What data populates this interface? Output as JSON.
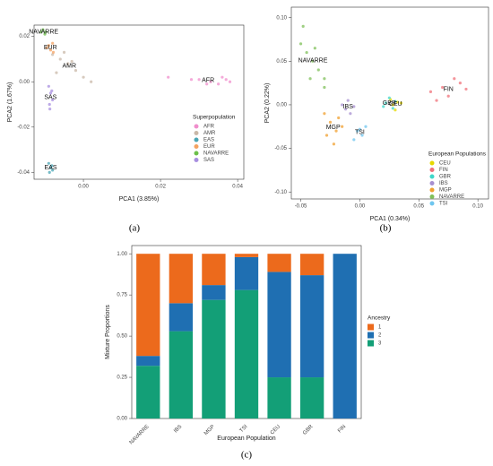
{
  "chart_data": [
    {
      "type": "scatter",
      "caption": "(a)",
      "x_label": "PCA1 (3.85%)",
      "y_label": "PCA2 (1.67%)",
      "legend_title": "Superpopulation",
      "xlim": [
        -0.0128,
        0.0416
      ],
      "ylim": [
        -0.043,
        0.025
      ],
      "xticks": [
        {
          "value": 0,
          "label": "0.00"
        },
        {
          "value": 0.02,
          "label": "0.02"
        },
        {
          "value": 0.04,
          "label": "0.04"
        }
      ],
      "yticks": [
        {
          "value": 0.02,
          "label": "0.02"
        },
        {
          "value": 0,
          "label": "0.00"
        },
        {
          "value": -0.02,
          "label": "-0.02"
        },
        {
          "value": -0.04,
          "label": "-0.04"
        }
      ],
      "series": [
        {
          "name": "AFR",
          "color": "#f08ecc",
          "x": [
            0.03,
            0.033,
            0.035,
            0.037,
            0.038,
            0.036,
            0.028,
            0.022,
            0.032
          ],
          "y": [
            0.001,
            0.0,
            -0.001,
            0.001,
            0.0,
            0.002,
            0.001,
            0.002,
            -0.001
          ]
        },
        {
          "name": "AMR",
          "color": "#c9b8a8",
          "x": [
            -0.008,
            -0.006,
            -0.004,
            -0.002,
            0.0,
            -0.007,
            -0.005,
            0.002,
            -0.003
          ],
          "y": [
            0.012,
            0.01,
            0.008,
            0.005,
            0.002,
            0.004,
            0.013,
            0.0,
            0.009
          ]
        },
        {
          "name": "EAS",
          "color": "#4aa6b5",
          "x": [
            -0.009,
            -0.0085,
            -0.008,
            -0.0088,
            -0.0082
          ],
          "y": [
            -0.036,
            -0.038,
            -0.039,
            -0.04,
            -0.037
          ]
        },
        {
          "name": "EUR",
          "color": "#f4a261",
          "x": [
            -0.009,
            -0.0085,
            -0.008,
            -0.0095,
            -0.0078
          ],
          "y": [
            0.016,
            0.014,
            0.017,
            0.015,
            0.013
          ]
        },
        {
          "name": "NAVARRE",
          "color": "#6cc04a",
          "x": [
            -0.011,
            -0.0105,
            -0.01,
            -0.0098
          ],
          "y": [
            0.022,
            0.023,
            0.021,
            0.022
          ]
        },
        {
          "name": "SAS",
          "color": "#a88fe0",
          "x": [
            -0.009,
            -0.0085,
            -0.008,
            -0.0088,
            -0.0082,
            -0.0087
          ],
          "y": [
            -0.002,
            -0.005,
            -0.008,
            -0.01,
            -0.004,
            -0.012
          ]
        }
      ]
    },
    {
      "type": "scatter",
      "caption": "(b)",
      "x_label": "PCA1 (0.34%)",
      "y_label": "PCA2 (0.22%)",
      "legend_title": "European Populations",
      "xlim": [
        -0.058,
        0.109
      ],
      "ylim": [
        -0.108,
        0.112
      ],
      "xticks": [
        {
          "value": -0.05,
          "label": "-0.05"
        },
        {
          "value": 0,
          "label": "0.00"
        },
        {
          "value": 0.05,
          "label": "0.05"
        },
        {
          "value": 0.1,
          "label": "0.10"
        }
      ],
      "yticks": [
        {
          "value": 0.1,
          "label": "0.10"
        },
        {
          "value": 0.05,
          "label": "0.05"
        },
        {
          "value": 0,
          "label": "0.00"
        },
        {
          "value": -0.05,
          "label": "-0.05"
        },
        {
          "value": -0.1,
          "label": "-0.10"
        }
      ],
      "series": [
        {
          "name": "CEU",
          "color": "#e6d800",
          "x": [
            0.028,
            0.032,
            0.03,
            0.035,
            0.026
          ],
          "y": [
            0.0,
            0.003,
            -0.006,
            0.002,
            0.006
          ]
        },
        {
          "name": "FIN",
          "color": "#f0717a",
          "x": [
            0.06,
            0.07,
            0.08,
            0.075,
            0.085,
            0.09,
            0.065
          ],
          "y": [
            0.015,
            0.02,
            0.03,
            0.01,
            0.025,
            0.018,
            0.005
          ]
        },
        {
          "name": "GBR",
          "color": "#3fd7c9",
          "x": [
            0.022,
            0.025,
            0.028,
            0.02,
            0.03
          ],
          "y": [
            0.002,
            0.008,
            -0.004,
            -0.002,
            0.004
          ]
        },
        {
          "name": "IBS",
          "color": "#a78fd0",
          "x": [
            -0.012,
            -0.008,
            -0.015,
            -0.005,
            -0.01
          ],
          "y": [
            -0.005,
            -0.01,
            0.0,
            -0.002,
            0.005
          ]
        },
        {
          "name": "MGP",
          "color": "#f0a030",
          "x": [
            -0.025,
            -0.02,
            -0.018,
            -0.028,
            -0.015,
            -0.022,
            -0.03
          ],
          "y": [
            -0.02,
            -0.03,
            -0.015,
            -0.035,
            -0.025,
            -0.045,
            -0.01
          ]
        },
        {
          "name": "NAVARRE",
          "color": "#7fc05a",
          "x": [
            -0.05,
            -0.045,
            -0.04,
            -0.035,
            -0.03,
            -0.042,
            -0.038,
            -0.048,
            -0.03
          ],
          "y": [
            0.07,
            0.06,
            0.05,
            0.04,
            0.02,
            0.03,
            0.065,
            0.09,
            0.03
          ]
        },
        {
          "name": "TSI",
          "color": "#6fc6ef",
          "x": [
            -0.002,
            0.002,
            0.005,
            -0.005,
            0.0
          ],
          "y": [
            -0.03,
            -0.035,
            -0.025,
            -0.04,
            -0.028
          ]
        }
      ]
    },
    {
      "type": "stacked_bar",
      "caption": "(c)",
      "x_label": "European Population",
      "y_label": "Mixture Proportions",
      "legend_title": "Ancestry",
      "categories": [
        "NAVARRE",
        "IBS",
        "MGP",
        "TSI",
        "CEU",
        "GBR",
        "FIN"
      ],
      "ylim": [
        0,
        1.05
      ],
      "yticks": [
        {
          "value": 0,
          "label": "0.00"
        },
        {
          "value": 0.25,
          "label": "0.25"
        },
        {
          "value": 0.5,
          "label": "0.50"
        },
        {
          "value": 0.75,
          "label": "0.75"
        },
        {
          "value": 1,
          "label": "1.00"
        }
      ],
      "series": [
        {
          "name": "1",
          "color": "#ec6a1c",
          "values": [
            0.62,
            0.3,
            0.19,
            0.02,
            0.11,
            0.13,
            0
          ]
        },
        {
          "name": "2",
          "color": "#1f6fb2",
          "values": [
            0.06,
            0.17,
            0.09,
            0.2,
            0.64,
            0.62,
            1.0
          ]
        },
        {
          "name": "3",
          "color": "#139f77",
          "values": [
            0.32,
            0.53,
            0.72,
            0.78,
            0.25,
            0.25,
            0
          ]
        }
      ]
    }
  ]
}
